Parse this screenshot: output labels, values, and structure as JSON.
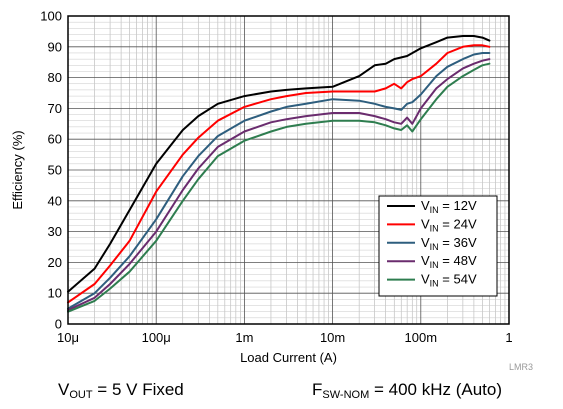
{
  "chart_data": {
    "type": "line",
    "title": "",
    "xlabel": "Load Current (A)",
    "ylabel": "Efficiency (%)",
    "x_scale": "log",
    "xlim": [
      1e-05,
      1
    ],
    "ylim": [
      0,
      100
    ],
    "grid": true,
    "legend_position": "bottom-right",
    "x_ticks": [
      {
        "value": 1e-05,
        "label": "10μ"
      },
      {
        "value": 0.0001,
        "label": "100μ"
      },
      {
        "value": 0.001,
        "label": "1m"
      },
      {
        "value": 0.01,
        "label": "10m"
      },
      {
        "value": 0.1,
        "label": "100m"
      },
      {
        "value": 1,
        "label": "1"
      }
    ],
    "y_ticks": [
      0,
      10,
      20,
      30,
      40,
      50,
      60,
      70,
      80,
      90,
      100
    ],
    "series": [
      {
        "name": "V_IN = 12V",
        "legend_main": "V",
        "legend_sub": "IN",
        "legend_rest": " = 12V",
        "color": "#000000",
        "x": [
          1e-05,
          2e-05,
          3e-05,
          5e-05,
          0.0001,
          0.0002,
          0.0003,
          0.0005,
          0.001,
          0.002,
          0.003,
          0.005,
          0.01,
          0.02,
          0.03,
          0.04,
          0.05,
          0.07,
          0.1,
          0.15,
          0.2,
          0.3,
          0.4,
          0.5,
          0.6
        ],
        "y": [
          10.5,
          18,
          26,
          37,
          52,
          63,
          67.5,
          71.5,
          74,
          75.5,
          76,
          76.5,
          77,
          80.5,
          84,
          84.5,
          86,
          87,
          89.5,
          91.5,
          93,
          93.5,
          93.5,
          93,
          92
        ]
      },
      {
        "name": "V_IN = 24V",
        "legend_main": "V",
        "legend_sub": "IN",
        "legend_rest": " = 24V",
        "color": "#ff0000",
        "x": [
          1e-05,
          2e-05,
          3e-05,
          5e-05,
          0.0001,
          0.0002,
          0.0003,
          0.0005,
          0.001,
          0.002,
          0.003,
          0.005,
          0.01,
          0.02,
          0.03,
          0.04,
          0.05,
          0.06,
          0.07,
          0.08,
          0.1,
          0.15,
          0.2,
          0.3,
          0.4,
          0.5,
          0.6
        ],
        "y": [
          7,
          13,
          19,
          27,
          43,
          55,
          60.5,
          66,
          70.5,
          73,
          74,
          75,
          75.5,
          75.5,
          75.5,
          76.5,
          78,
          76.5,
          78.5,
          79.5,
          80.5,
          84.5,
          88,
          90,
          90.5,
          90.5,
          90
        ],
        "note": "curve"
      },
      {
        "name": "V_IN = 36V",
        "legend_main": "V",
        "legend_sub": "IN",
        "legend_rest": " = 36V",
        "color": "#2e5e7e",
        "x": [
          1e-05,
          2e-05,
          3e-05,
          5e-05,
          0.0001,
          0.0002,
          0.0003,
          0.0005,
          0.001,
          0.002,
          0.003,
          0.005,
          0.01,
          0.02,
          0.03,
          0.04,
          0.05,
          0.06,
          0.07,
          0.08,
          0.1,
          0.15,
          0.2,
          0.3,
          0.4,
          0.5,
          0.6
        ],
        "y": [
          5,
          10,
          15,
          22,
          34,
          48,
          54.5,
          61,
          66,
          69,
          70.5,
          71.5,
          73,
          72.5,
          71.5,
          70.5,
          70,
          69.5,
          71.5,
          72,
          74.5,
          80.5,
          83.5,
          86,
          87.5,
          88,
          88
        ]
      },
      {
        "name": "V_IN = 48V",
        "legend_main": "V",
        "legend_sub": "IN",
        "legend_rest": " = 48V",
        "color": "#6a2c6e",
        "x": [
          1e-05,
          2e-05,
          3e-05,
          5e-05,
          0.0001,
          0.0002,
          0.0003,
          0.0005,
          0.001,
          0.002,
          0.003,
          0.005,
          0.01,
          0.02,
          0.03,
          0.04,
          0.05,
          0.06,
          0.07,
          0.08,
          0.1,
          0.15,
          0.2,
          0.3,
          0.4,
          0.5,
          0.6
        ],
        "y": [
          4.5,
          8.5,
          13,
          19.5,
          30,
          43.5,
          50.5,
          57.5,
          62.5,
          65.5,
          66.5,
          67.5,
          68.5,
          68.5,
          67.5,
          66.5,
          65.5,
          65,
          67,
          65,
          70,
          76.5,
          79.5,
          83,
          84.5,
          85.5,
          86
        ]
      },
      {
        "name": "V_IN = 54V",
        "legend_main": "V",
        "legend_sub": "IN",
        "legend_rest": " = 54V",
        "color": "#2e7d4f",
        "x": [
          1e-05,
          2e-05,
          3e-05,
          5e-05,
          0.0001,
          0.0002,
          0.0003,
          0.0005,
          0.001,
          0.002,
          0.003,
          0.005,
          0.01,
          0.02,
          0.03,
          0.04,
          0.05,
          0.06,
          0.07,
          0.08,
          0.1,
          0.15,
          0.2,
          0.3,
          0.4,
          0.5,
          0.6
        ],
        "y": [
          4,
          7.5,
          11.5,
          17,
          27,
          40,
          47,
          54.5,
          59.5,
          62.5,
          64,
          65,
          66,
          66,
          65.5,
          64.5,
          63.5,
          63,
          64.5,
          62.5,
          66.5,
          73,
          77,
          80.5,
          82.5,
          84,
          84.5
        ]
      }
    ]
  },
  "watermark": "LMR3",
  "footer": {
    "left": {
      "main": "V",
      "sub": "OUT",
      "rest": " = 5 V Fixed"
    },
    "right": {
      "main": "F",
      "sub": "SW-NOM",
      "rest": " = 400 kHz (Auto)"
    }
  }
}
